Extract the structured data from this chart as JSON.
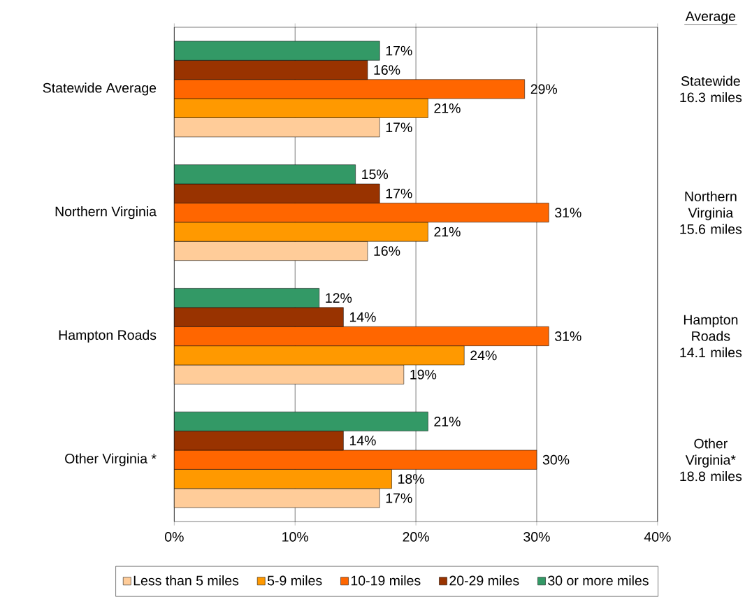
{
  "chart_data": {
    "type": "bar",
    "orientation": "horizontal",
    "categories": [
      "Statewide Average",
      "Northern Virginia",
      "Hampton Roads",
      "Other Virginia *"
    ],
    "series": [
      {
        "name": "Less than 5 miles",
        "color": "#ffcc99",
        "values": [
          17,
          16,
          19,
          17
        ],
        "value_labels": [
          "17%",
          "16%",
          "19%",
          "17%"
        ]
      },
      {
        "name": "5-9 miles",
        "color": "#ff9900",
        "values": [
          21,
          21,
          24,
          18
        ],
        "value_labels": [
          "21%",
          "21%",
          "24%",
          "18%"
        ]
      },
      {
        "name": "10-19 miles",
        "color": "#ff6600",
        "values": [
          29,
          31,
          31,
          30
        ],
        "value_labels": [
          "29%",
          "31%",
          "31%",
          "30%"
        ]
      },
      {
        "name": "20-29 miles",
        "color": "#993300",
        "values": [
          16,
          17,
          14,
          14
        ],
        "value_labels": [
          "16%",
          "17%",
          "14%",
          "14%"
        ]
      },
      {
        "name": "30 or more miles",
        "color": "#339966",
        "values": [
          17,
          15,
          12,
          21
        ],
        "value_labels": [
          "17%",
          "15%",
          "12%",
          "21%"
        ]
      }
    ],
    "xlim": [
      0,
      40
    ],
    "xticks": [
      {
        "value": 0,
        "label": "0%"
      },
      {
        "value": 10,
        "label": "10%"
      },
      {
        "value": 20,
        "label": "20%"
      },
      {
        "value": 30,
        "label": "30%"
      },
      {
        "value": 40,
        "label": "40%"
      }
    ],
    "grid": "x",
    "legend": "bottom",
    "annotations": [
      "Average",
      "Statewide 16.3 miles",
      "Northern Virginia 15.6 miles",
      "Hampton Roads 14.1 miles",
      "Other Virginia* 18.8 miles"
    ]
  }
}
